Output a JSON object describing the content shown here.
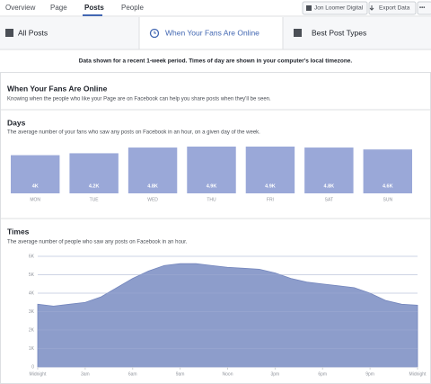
{
  "nav": {
    "tabs": [
      "Overview",
      "Page",
      "Posts",
      "People"
    ],
    "actions": [
      "Jon Loomer Digital",
      "Export Data"
    ],
    "more": "•••"
  },
  "subtabs": [
    "All Posts",
    "When Your Fans Are Online",
    "Best Post Types"
  ],
  "notice": "Data shown for a recent 1-week period. Times of day are shown in your computer's local timezone.",
  "section": {
    "title": "When Your Fans Are Online",
    "description": "Knowing when the people who like your Page are on Facebook can help you share posts when they'll be seen."
  },
  "chart_data": [
    {
      "type": "bar",
      "title": "Days",
      "subtitle": "The average number of your fans who saw any posts on Facebook in an hour, on a given day of the week.",
      "categories": [
        "MON",
        "TUE",
        "WED",
        "THU",
        "FRI",
        "SAT",
        "SUN"
      ],
      "values": [
        4000,
        4200,
        4800,
        4900,
        4900,
        4800,
        4600
      ],
      "value_labels": [
        "4K",
        "4.2K",
        "4.8K",
        "4.9K",
        "4.9K",
        "4.8K",
        "4.6K"
      ],
      "color": "#9aa8d8"
    },
    {
      "type": "area",
      "title": "Times",
      "subtitle": "The average number of people who saw any posts on Facebook in an hour.",
      "x": [
        0,
        1,
        2,
        3,
        4,
        5,
        6,
        7,
        8,
        9,
        10,
        11,
        12,
        13,
        14,
        15,
        16,
        17,
        18,
        19,
        20,
        21,
        22,
        23,
        24
      ],
      "values": [
        3400,
        3300,
        3400,
        3500,
        3800,
        4300,
        4800,
        5200,
        5500,
        5600,
        5600,
        5500,
        5400,
        5350,
        5300,
        5100,
        4800,
        4600,
        4500,
        4400,
        4300,
        4000,
        3600,
        3400,
        3350
      ],
      "color": "#8d9dcb",
      "xlim": [
        0,
        24
      ],
      "xticks": [
        {
          "value": 0,
          "label": "Midnight"
        },
        {
          "value": 3,
          "label": "3am"
        },
        {
          "value": 6,
          "label": "6am"
        },
        {
          "value": 9,
          "label": "9am"
        },
        {
          "value": 12,
          "label": "Noon"
        },
        {
          "value": 15,
          "label": "3pm"
        },
        {
          "value": 18,
          "label": "6pm"
        },
        {
          "value": 21,
          "label": "9pm"
        },
        {
          "value": 24,
          "label": "Midnight"
        }
      ],
      "ylim": [
        0,
        6000
      ],
      "yticks": [
        0,
        {
          "value": 1000,
          "label": "1K"
        },
        {
          "value": 2000,
          "label": "2K"
        },
        {
          "value": 3000,
          "label": "3K"
        },
        {
          "value": 4000,
          "label": "4K"
        },
        {
          "value": 5000,
          "label": "5K"
        },
        {
          "value": 6000,
          "label": "6K"
        }
      ],
      "grid": true
    }
  ]
}
